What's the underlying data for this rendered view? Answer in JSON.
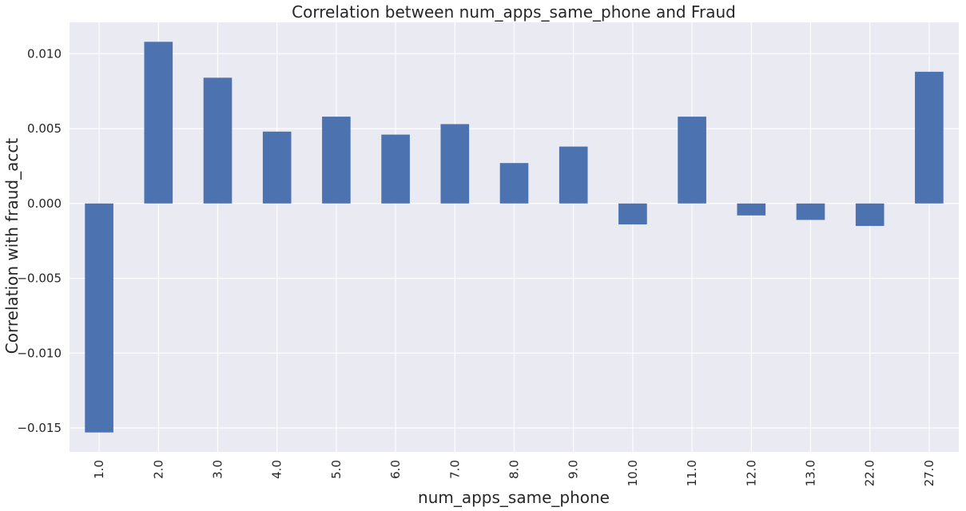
{
  "chart_data": {
    "type": "bar",
    "title": "Correlation between num_apps_same_phone and Fraud",
    "xlabel": "num_apps_same_phone",
    "ylabel": "Correlation with fraud_acct",
    "categories": [
      "1.0",
      "2.0",
      "3.0",
      "4.0",
      "5.0",
      "6.0",
      "7.0",
      "8.0",
      "9.0",
      "10.0",
      "11.0",
      "12.0",
      "13.0",
      "22.0",
      "27.0"
    ],
    "values": [
      -0.0153,
      0.0108,
      0.0084,
      0.0048,
      0.0058,
      0.0046,
      0.0053,
      0.0027,
      0.0038,
      -0.0014,
      0.0058,
      -0.0008,
      -0.0011,
      -0.0015,
      0.0088
    ],
    "ylim": [
      -0.0166,
      0.0121
    ],
    "yticks": [
      0.01,
      0.005,
      0.0,
      -0.005,
      -0.01,
      -0.015
    ],
    "ytick_labels": [
      "0.010",
      "0.005",
      "0.000",
      "−0.005",
      "−0.010",
      "−0.015"
    ],
    "grid": true,
    "colors": {
      "bar": "#4c72b0",
      "background": "#eaeaf2",
      "grid": "#ffffff"
    }
  }
}
